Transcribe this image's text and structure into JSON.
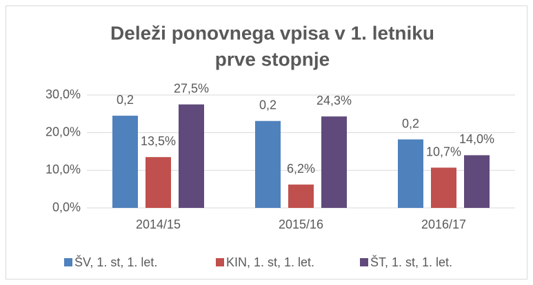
{
  "chart_data": {
    "type": "bar",
    "title": [
      "Deleži ponovnega vpisa v 1. letniku",
      "prve stopnje"
    ],
    "categories": [
      "2014/15",
      "2015/16",
      "2016/17"
    ],
    "series": [
      {
        "name": "ŠV, 1. st, 1. let.",
        "color": "#4f81bd",
        "values": [
          24.5,
          23.1,
          18.2
        ],
        "value_labels": [
          "0,2",
          "0,2",
          "0,2"
        ]
      },
      {
        "name": "KIN, 1. st, 1. let.",
        "color": "#c0504d",
        "values": [
          13.5,
          6.2,
          10.7
        ],
        "value_labels": [
          "13,5%",
          "6,2%",
          "10,7%"
        ]
      },
      {
        "name": "ŠT, 1. st, 1. let.",
        "color": "#604a7b",
        "values": [
          27.5,
          24.3,
          14.0
        ],
        "value_labels": [
          "27,5%",
          "24,3%",
          "14,0%"
        ]
      }
    ],
    "ylim": [
      0,
      30
    ],
    "yticks": [
      {
        "value": 0,
        "label": "0,0%"
      },
      {
        "value": 10,
        "label": "10,0%"
      },
      {
        "value": 20,
        "label": "20,0%"
      },
      {
        "value": 30,
        "label": "30,0%"
      }
    ],
    "grid": true,
    "legend": "bottom"
  }
}
